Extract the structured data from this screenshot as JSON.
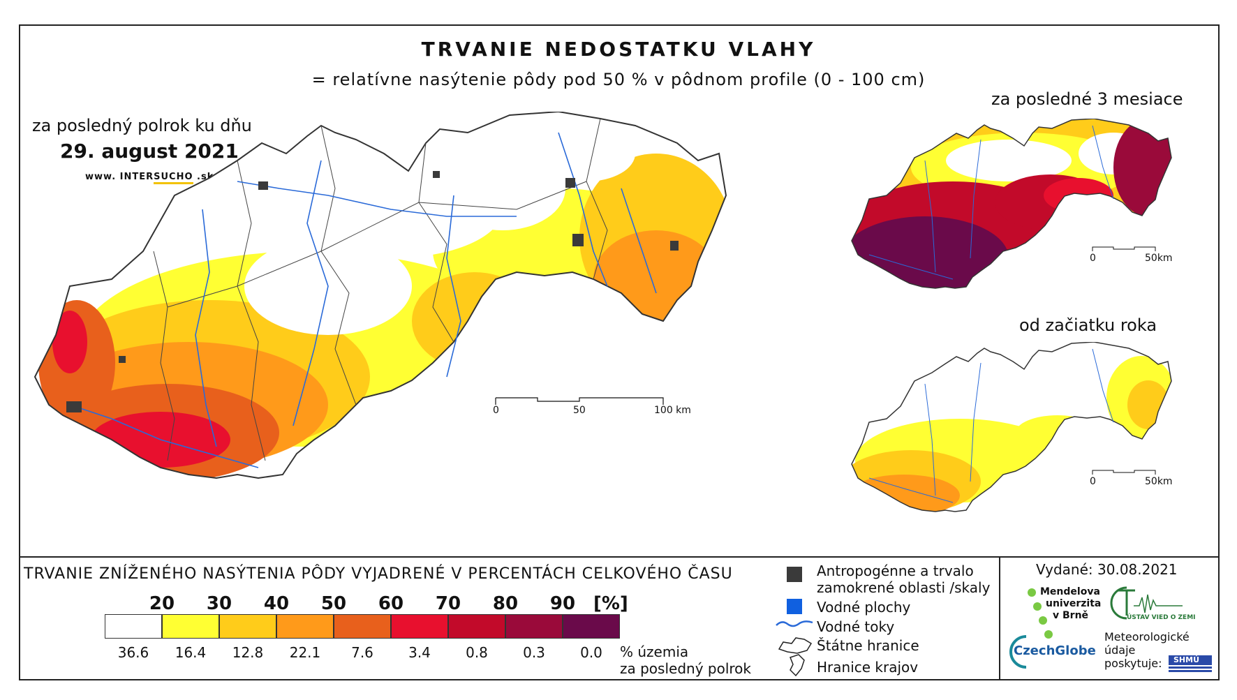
{
  "title": "TRVANIE NEDOSTATKU VLAHY",
  "subtitle": "= relatívne nasýtenie pôdy pod 50 % v pôdnom profile (0 - 100 cm)",
  "main_map": {
    "period_label": "za posledný polrok ku dňu",
    "date": "29. august 2021",
    "website_prefix": "www. INTER",
    "website_highlight": "SUCHO",
    "website_suffix": " .sk",
    "scale": {
      "labels": [
        "0",
        "50",
        "100 km"
      ]
    }
  },
  "inset_3months": {
    "label": "za posledné 3 mesiace",
    "scale": {
      "labels": [
        "0",
        "50km"
      ]
    }
  },
  "inset_year": {
    "label": "od začiatku roka",
    "scale": {
      "labels": [
        "0",
        "50km"
      ]
    }
  },
  "legend": {
    "title": "TRVANIE ZNÍŽENÉHO NASÝTENIA PÔDY VYJADRENÉ V PERCENTÁCH CELKOVÉHO ČASU",
    "ticks": [
      "20",
      "30",
      "40",
      "50",
      "60",
      "70",
      "80",
      "90"
    ],
    "unit": "[%]",
    "classes": [
      {
        "color": "#ffffff",
        "share": "36.6"
      },
      {
        "color": "#ffff33",
        "share": "16.4"
      },
      {
        "color": "#ffcc1a",
        "share": "12.8"
      },
      {
        "color": "#ff9a1a",
        "share": "22.1"
      },
      {
        "color": "#e8601c",
        "share": "7.6"
      },
      {
        "color": "#e8102e",
        "share": "3.4"
      },
      {
        "color": "#c20a2a",
        "share": "0.8"
      },
      {
        "color": "#9a0a3a",
        "share": "0.3"
      },
      {
        "color": "#6a0a4a",
        "share": "0.0"
      }
    ],
    "share_caption_line1": "% územia",
    "share_caption_line2": "za posledný polrok"
  },
  "key": {
    "anthropogenic_line1": "Antropogénne a trvalo",
    "anthropogenic_line2": "zamokrené oblasti /skaly",
    "water_bodies": "Vodné plochy",
    "rivers": "Vodné toky",
    "state_border": "Štátne hranice",
    "region_border": "Hranice krajov",
    "colors": {
      "anthropogenic": "#3a3a3a",
      "water": "#1060e0",
      "river": "#2a6ad8"
    }
  },
  "credits": {
    "issued": "Vydané: 30.08.2021",
    "mendel_line1": "Mendelova",
    "mendel_line2": "univerzita",
    "mendel_line3": "v Brně",
    "ustav": "ÚSTAV VIED O ZEMI",
    "czechglobe": "CzechGlobe",
    "meteo_line1": "Meteorologické",
    "meteo_line2": "údaje",
    "meteo_line3": "poskytuje:",
    "shmu": "SHMÚ"
  }
}
